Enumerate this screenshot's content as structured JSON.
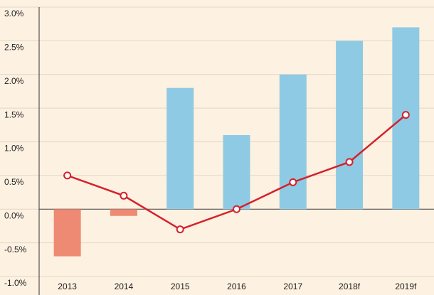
{
  "chart_data": {
    "type": "bar_line",
    "categories": [
      "2013",
      "2014",
      "2015",
      "2016",
      "2017",
      "2018f",
      "2019f"
    ],
    "series": [
      {
        "type": "bar",
        "color": "#8ecae4",
        "negative_color": "#ee8a73",
        "values": [
          -0.7,
          -0.1,
          1.8,
          1.1,
          2.0,
          2.5,
          2.7
        ]
      },
      {
        "type": "line",
        "color": "#d4212c",
        "values": [
          0.5,
          0.2,
          -0.3,
          0.0,
          0.4,
          0.7,
          1.4
        ]
      }
    ],
    "ylim": [
      -1.0,
      3.0
    ],
    "yticks": [
      {
        "value": -1.0,
        "label": "-1.0%"
      },
      {
        "value": -0.5,
        "label": "-0.5%"
      },
      {
        "value": 0.0,
        "label": "0.0%"
      },
      {
        "value": 0.5,
        "label": "0.5%"
      },
      {
        "value": 1.0,
        "label": "1.0%"
      },
      {
        "value": 1.5,
        "label": "1.5%"
      },
      {
        "value": 2.0,
        "label": "2.0%"
      },
      {
        "value": 2.5,
        "label": "2.5%"
      },
      {
        "value": 3.0,
        "label": "3.0%"
      }
    ],
    "grid": true
  }
}
